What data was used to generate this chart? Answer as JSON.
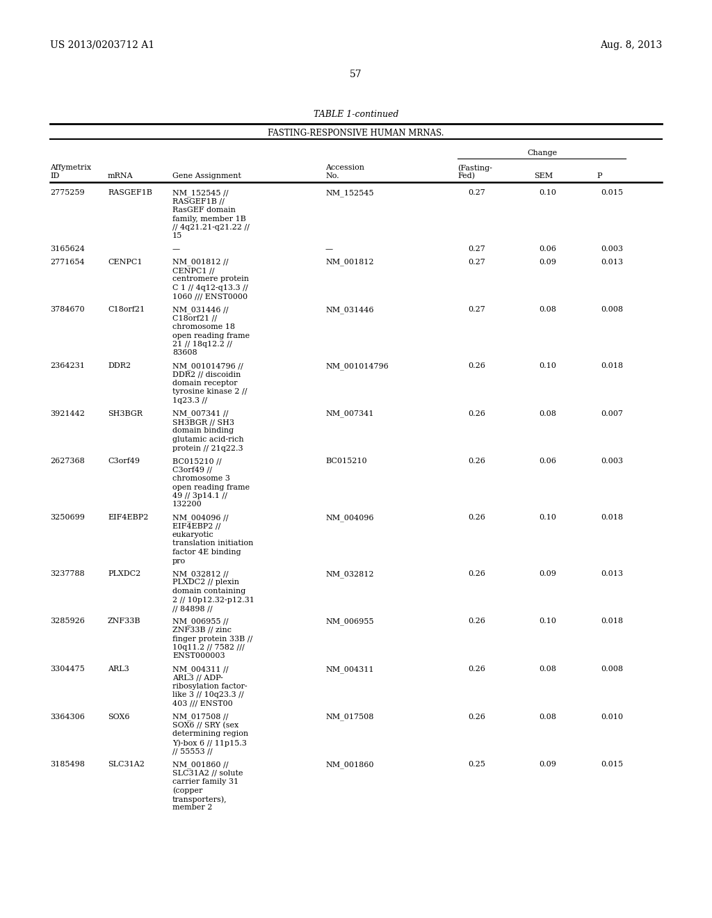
{
  "patent_left": "US 2013/0203712 A1",
  "patent_right": "Aug. 8, 2013",
  "page_number": "57",
  "table_title": "TABLE 1-continued",
  "table_subtitle": "FASTING-RESPONSIVE HUMAN MRNAS.",
  "change_header": "Change",
  "rows": [
    {
      "affy_id": "2775259",
      "mrna": "RASGEF1B",
      "gene_assignment": "NM_152545 //\nRASGEF1B //\nRasGEF domain\nfamily, member 1B\n// 4q21.21-q21.22 //\n15",
      "accession": "NM_152545",
      "fasting_fed": "0.27",
      "sem": "0.10",
      "p": "0.015",
      "n_lines": 6
    },
    {
      "affy_id": "3165624",
      "mrna": "",
      "gene_assignment": "—",
      "accession": "—",
      "fasting_fed": "0.27",
      "sem": "0.06",
      "p": "0.003",
      "n_lines": 1
    },
    {
      "affy_id": "2771654",
      "mrna": "CENPC1",
      "gene_assignment": "NM_001812 //\nCENPC1 //\ncentromere protein\nC 1 // 4q12-q13.3 //\n1060 /// ENST0000",
      "accession": "NM_001812",
      "fasting_fed": "0.27",
      "sem": "0.09",
      "p": "0.013",
      "n_lines": 5
    },
    {
      "affy_id": "3784670",
      "mrna": "C18orf21",
      "gene_assignment": "NM_031446 //\nC18orf21 //\nchromosome 18\nopen reading frame\n21 // 18q12.2 //\n83608",
      "accession": "NM_031446",
      "fasting_fed": "0.27",
      "sem": "0.08",
      "p": "0.008",
      "n_lines": 6
    },
    {
      "affy_id": "2364231",
      "mrna": "DDR2",
      "gene_assignment": "NM_001014796 //\nDDR2 // discoidin\ndomain receptor\ntyrosine kinase 2 //\n1q23.3 //",
      "accession": "NM_001014796",
      "fasting_fed": "0.26",
      "sem": "0.10",
      "p": "0.018",
      "n_lines": 5
    },
    {
      "affy_id": "3921442",
      "mrna": "SH3BGR",
      "gene_assignment": "NM_007341 //\nSH3BGR // SH3\ndomain binding\nglutamic acid-rich\nprotein // 21q22.3",
      "accession": "NM_007341",
      "fasting_fed": "0.26",
      "sem": "0.08",
      "p": "0.007",
      "n_lines": 5
    },
    {
      "affy_id": "2627368",
      "mrna": "C3orf49",
      "gene_assignment": "BC015210 //\nC3orf49 //\nchromosome 3\nopen reading frame\n49 // 3p14.1 //\n132200",
      "accession": "BC015210",
      "fasting_fed": "0.26",
      "sem": "0.06",
      "p": "0.003",
      "n_lines": 6
    },
    {
      "affy_id": "3250699",
      "mrna": "EIF4EBP2",
      "gene_assignment": "NM_004096 //\nEIF4EBP2 //\neukaryotic\ntranslation initiation\nfactor 4E binding\npro",
      "accession": "NM_004096",
      "fasting_fed": "0.26",
      "sem": "0.10",
      "p": "0.018",
      "n_lines": 6
    },
    {
      "affy_id": "3237788",
      "mrna": "PLXDC2",
      "gene_assignment": "NM_032812 //\nPLXDC2 // plexin\ndomain containing\n2 // 10p12.32-p12.31\n// 84898 //",
      "accession": "NM_032812",
      "fasting_fed": "0.26",
      "sem": "0.09",
      "p": "0.013",
      "n_lines": 5
    },
    {
      "affy_id": "3285926",
      "mrna": "ZNF33B",
      "gene_assignment": "NM_006955 //\nZNF33B // zinc\nfinger protein 33B //\n10q11.2 // 7582 ///\nENST000003",
      "accession": "NM_006955",
      "fasting_fed": "0.26",
      "sem": "0.10",
      "p": "0.018",
      "n_lines": 5
    },
    {
      "affy_id": "3304475",
      "mrna": "ARL3",
      "gene_assignment": "NM_004311 //\nARL3 // ADP-\nribosylation factor-\nlike 3 // 10q23.3 //\n403 /// ENST00",
      "accession": "NM_004311",
      "fasting_fed": "0.26",
      "sem": "0.08",
      "p": "0.008",
      "n_lines": 5
    },
    {
      "affy_id": "3364306",
      "mrna": "SOX6",
      "gene_assignment": "NM_017508 //\nSOX6 // SRY (sex\ndetermining region\nY)-box 6 // 11p15.3\n// 55553 //",
      "accession": "NM_017508",
      "fasting_fed": "0.26",
      "sem": "0.08",
      "p": "0.010",
      "n_lines": 5
    },
    {
      "affy_id": "3185498",
      "mrna": "SLC31A2",
      "gene_assignment": "NM_001860 //\nSLC31A2 // solute\ncarrier family 31\n(copper\ntransporters),\nmember 2",
      "accession": "NM_001860",
      "fasting_fed": "0.25",
      "sem": "0.09",
      "p": "0.015",
      "n_lines": 6
    }
  ],
  "bg_color": "#ffffff",
  "text_color": "#000000",
  "font_size": 8.0,
  "header_font_size": 8.0
}
